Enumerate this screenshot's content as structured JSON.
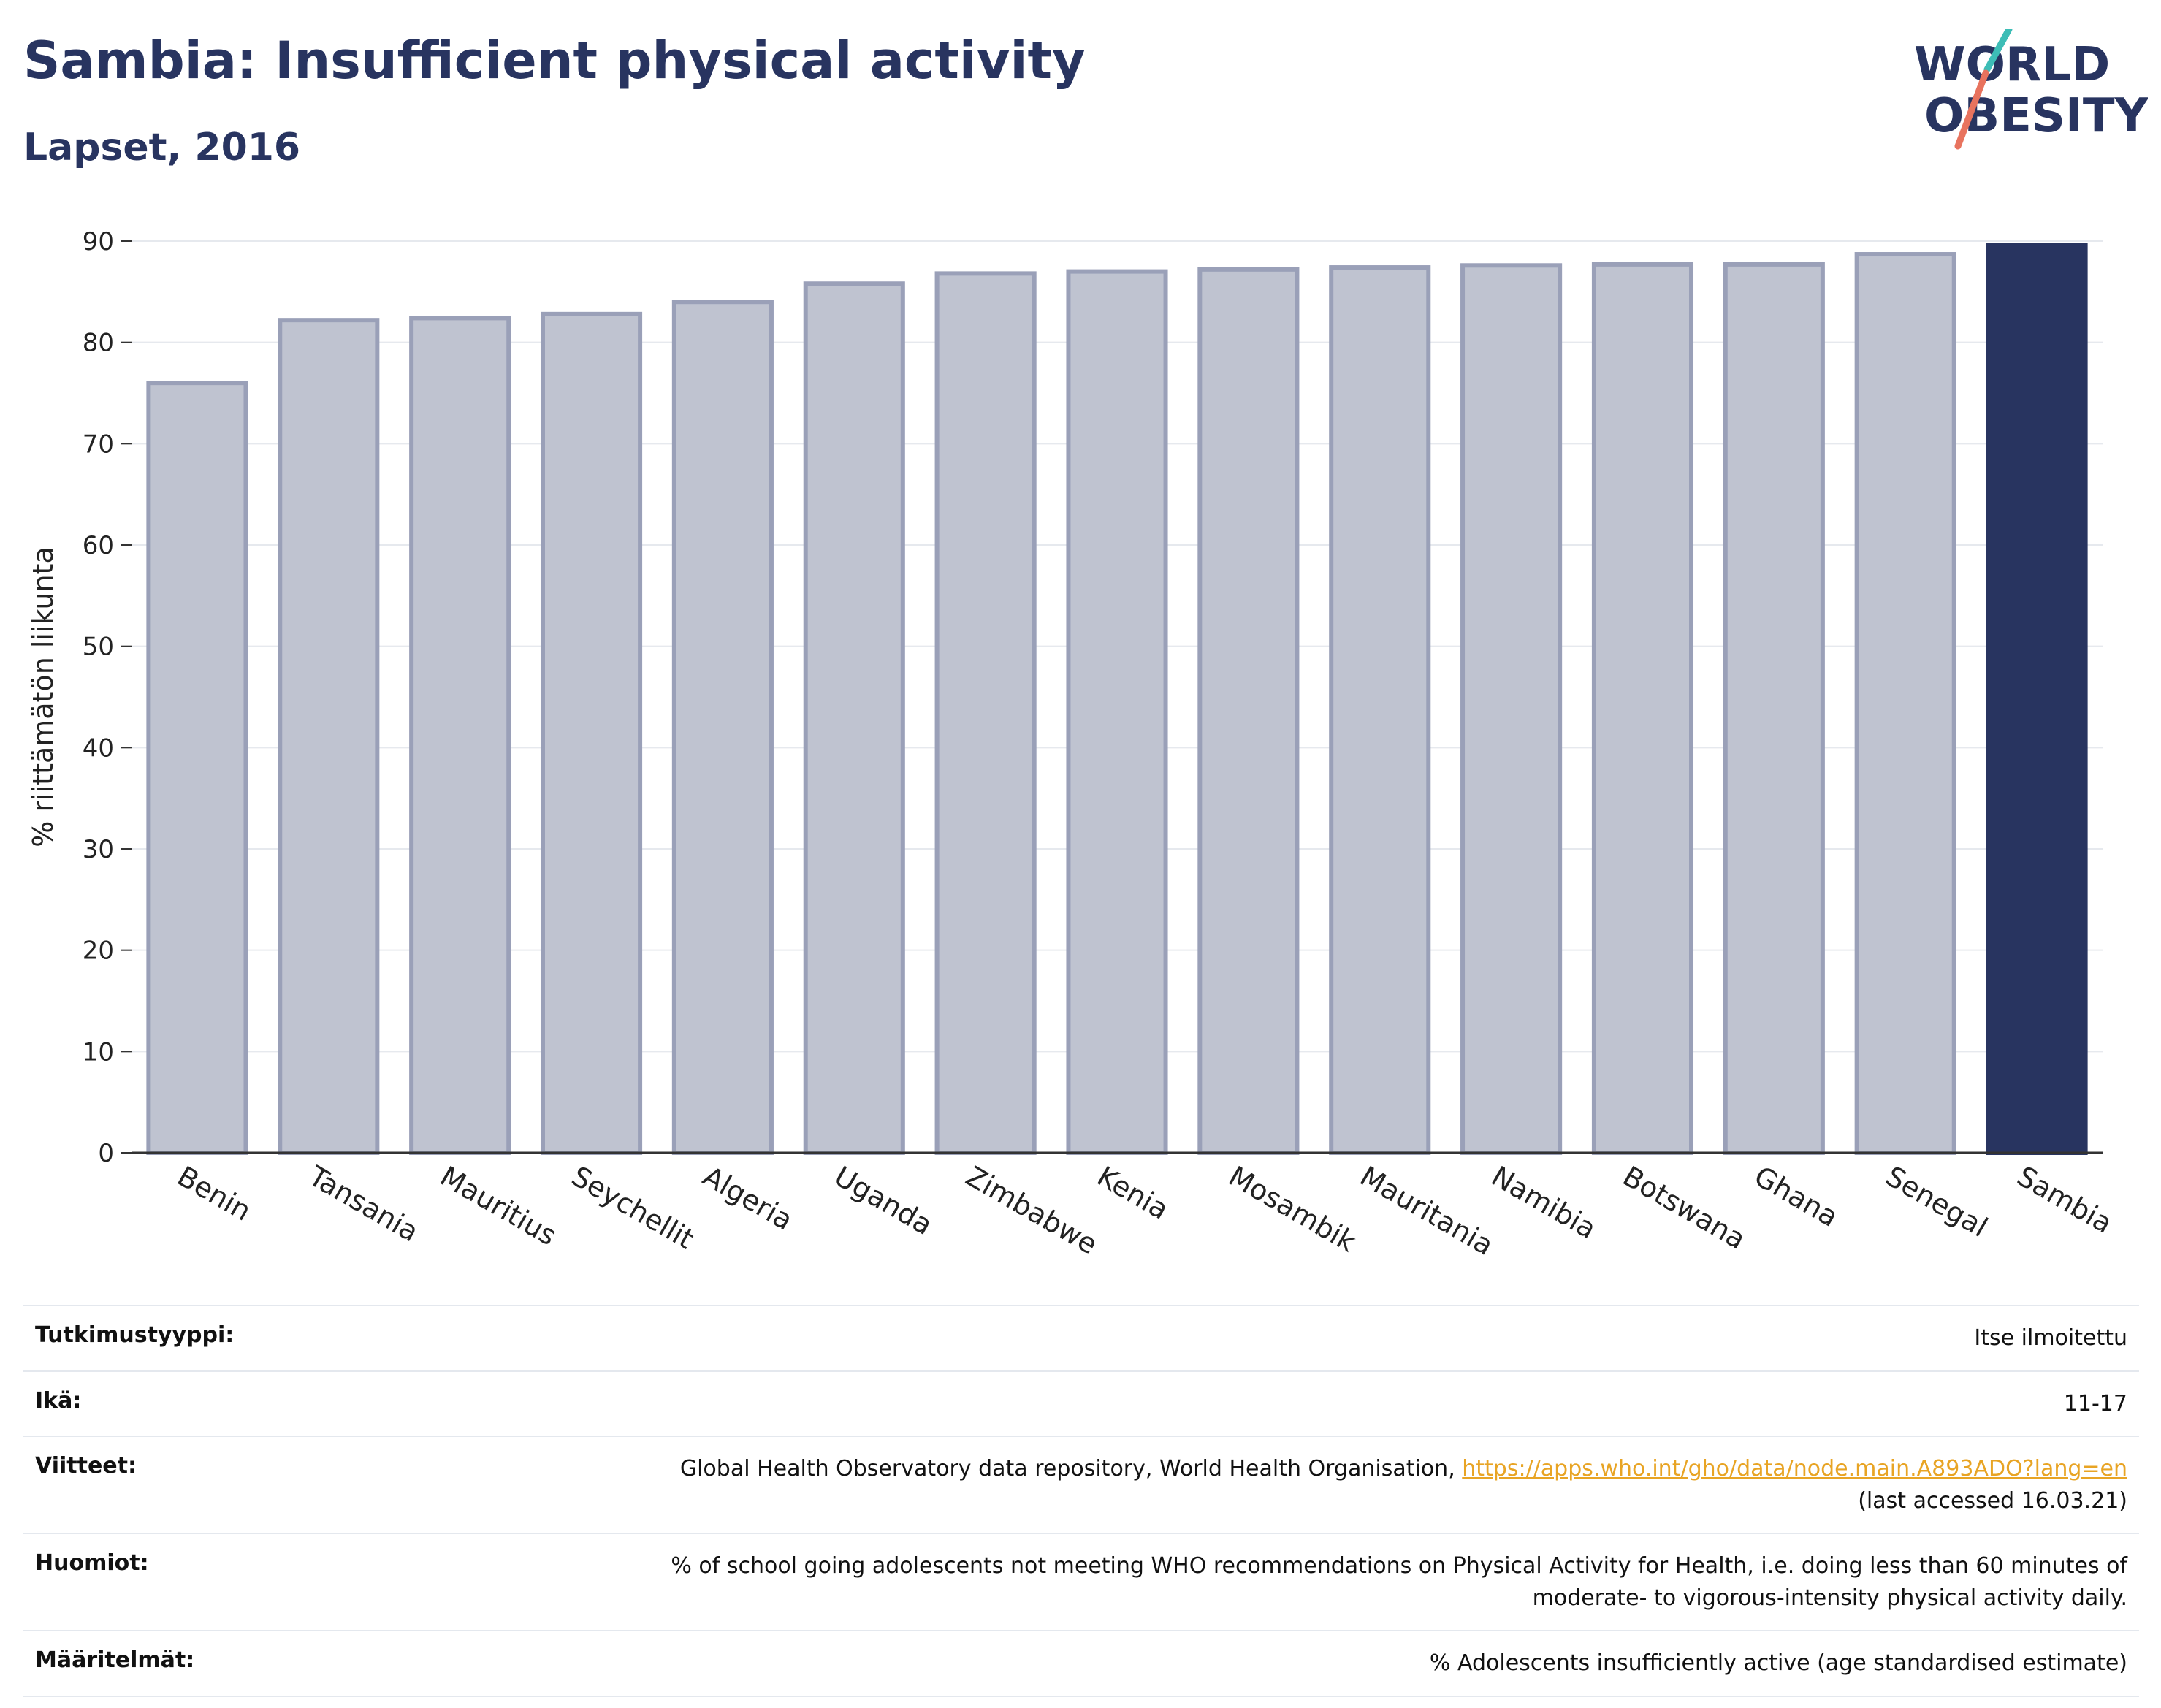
{
  "header": {
    "title": "Sambia: Insufficient physical activity",
    "subtitle": "Lapset, 2016"
  },
  "logo": {
    "line1": "WORLD",
    "line2": "OBESITY",
    "icon": "world-obesity-logo"
  },
  "colors": {
    "bar": "#bfc3d0",
    "bar_edge": "#9aa0b8",
    "highlight": "#283460",
    "grid": "#e6e9ee",
    "axis": "#333333"
  },
  "chart_data": {
    "type": "bar",
    "title": "",
    "xlabel": "",
    "ylabel": "% riittämätön liikunta",
    "ylim": [
      0,
      90
    ],
    "yticks": [
      0,
      10,
      20,
      30,
      40,
      50,
      60,
      70,
      80,
      90
    ],
    "grid": true,
    "categories": [
      "Benin",
      "Tansania",
      "Mauritius",
      "Seychellit",
      "Algeria",
      "Uganda",
      "Zimbabwe",
      "Kenia",
      "Mosambik",
      "Mauritania",
      "Namibia",
      "Botswana",
      "Ghana",
      "Senegal",
      "Sambia"
    ],
    "values": [
      76.0,
      82.2,
      82.4,
      82.8,
      84.0,
      85.8,
      86.8,
      87.0,
      87.2,
      87.4,
      87.6,
      87.7,
      87.7,
      88.7,
      89.6
    ],
    "highlight": "Sambia"
  },
  "meta": [
    {
      "key": "Tutkimustyyppi:",
      "value": "Itse ilmoitettu"
    },
    {
      "key": "Ikä:",
      "value": "11-17"
    },
    {
      "key": "Viitteet:",
      "value": "Global Health Observatory data repository, World Health Organisation, ",
      "link": "https://apps.who.int/gho/data/node.main.A893ADO?lang=en",
      "value2": "(last accessed 16.03.21)"
    },
    {
      "key": "Huomiot:",
      "value": "% of school going adolescents not meeting WHO recommendations on Physical Activity for Health, i.e. doing less than 60 minutes of",
      "value2": "moderate- to vigorous-intensity physical activity daily."
    },
    {
      "key": "Määritelmät:",
      "value": "% Adolescents insufficiently active (age standardised estimate)"
    }
  ]
}
